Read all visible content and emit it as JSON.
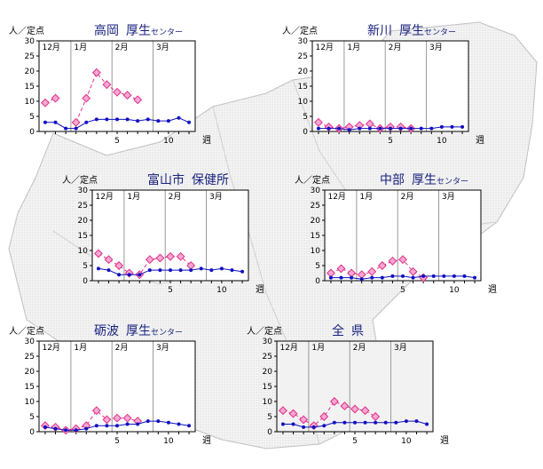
{
  "colors": {
    "prev_season": "#e0308a",
    "curr_season": "#1010c0",
    "title": "#1a237e",
    "plot_border": "#000000",
    "month_divider": "#999999",
    "map_fill": "#ececec",
    "map_stroke": "#c8c8c8"
  },
  "common": {
    "y_unit_label": "人／定点",
    "x_unit_label": "週",
    "month_labels": [
      "12月",
      "1月",
      "2月",
      "3月"
    ],
    "y_ticks": [
      "0",
      "5",
      "10",
      "15",
      "20",
      "25",
      "30"
    ],
    "x_ticks": [
      "5",
      "10"
    ]
  },
  "chart_data": [
    {
      "type": "line",
      "title": "高岡",
      "title_suffix_large": "厚生",
      "title_suffix_small": "センター",
      "ylim": [
        0,
        30
      ],
      "x_range": [
        -2,
        12
      ],
      "series": [
        {
          "x": [
            -2,
            -1,
            0,
            1,
            2,
            3,
            4,
            5,
            6,
            7
          ],
          "values": [
            9.5,
            11,
            null,
            3,
            11,
            19.5,
            15.5,
            13,
            12,
            10.5
          ]
        },
        {
          "x": [
            -2,
            -1,
            0,
            1,
            2,
            3,
            4,
            5,
            6,
            7,
            8,
            9,
            10,
            11,
            12
          ],
          "values": [
            3,
            3,
            1,
            1,
            3,
            4,
            4,
            4,
            4,
            3.5,
            4,
            3.5,
            3.5,
            4.5,
            3
          ]
        }
      ]
    },
    {
      "type": "line",
      "title": "新川",
      "title_suffix_large": "厚生",
      "title_suffix_small": "センター",
      "ylim": [
        0,
        30
      ],
      "x_range": [
        -2,
        12
      ],
      "series": [
        {
          "x": [
            -2,
            -1,
            0,
            1,
            2,
            3,
            4,
            5,
            6,
            7
          ],
          "values": [
            3,
            1.5,
            1,
            1.5,
            2,
            2.5,
            1,
            1.5,
            1.5,
            1
          ]
        },
        {
          "x": [
            -2,
            -1,
            0,
            1,
            2,
            3,
            4,
            5,
            6,
            7,
            8,
            9,
            10,
            11,
            12
          ],
          "values": [
            1,
            1,
            1,
            0.5,
            1,
            1,
            1,
            1,
            1,
            1,
            1,
            1,
            1.5,
            1.5,
            1.5
          ]
        }
      ]
    },
    {
      "type": "line",
      "title": "富山市",
      "title_suffix_large": "保健所",
      "title_suffix_small": "",
      "ylim": [
        0,
        30
      ],
      "x_range": [
        -2,
        12
      ],
      "series": [
        {
          "x": [
            -2,
            -1,
            0,
            1,
            2,
            3,
            4,
            5,
            6,
            7
          ],
          "values": [
            9,
            7,
            5,
            2.5,
            2,
            7,
            7.5,
            8,
            8,
            5
          ]
        },
        {
          "x": [
            -2,
            -1,
            0,
            1,
            2,
            3,
            4,
            5,
            6,
            7,
            8,
            9,
            10,
            11,
            12
          ],
          "values": [
            4,
            3.5,
            2,
            2,
            2,
            3.5,
            3.5,
            3.5,
            3.5,
            3.5,
            4,
            3.5,
            4,
            3.5,
            3
          ]
        }
      ]
    },
    {
      "type": "line",
      "title": "中部",
      "title_suffix_large": "厚生",
      "title_suffix_small": "センター",
      "ylim": [
        0,
        30
      ],
      "x_range": [
        -2,
        12
      ],
      "series": [
        {
          "x": [
            -2,
            -1,
            0,
            1,
            2,
            3,
            4,
            5,
            6,
            7
          ],
          "values": [
            2.5,
            4,
            2.5,
            2,
            3,
            5,
            6.5,
            7,
            3,
            1
          ]
        },
        {
          "x": [
            -2,
            -1,
            0,
            1,
            2,
            3,
            4,
            5,
            6,
            7,
            8,
            9,
            10,
            11,
            12
          ],
          "values": [
            1,
            1,
            1,
            0.5,
            1,
            1,
            1.5,
            1.5,
            1,
            1.5,
            1.5,
            1.5,
            1.5,
            1.5,
            1
          ]
        }
      ]
    },
    {
      "type": "line",
      "title": "砺波",
      "title_suffix_large": "厚生",
      "title_suffix_small": "センター",
      "ylim": [
        0,
        30
      ],
      "x_range": [
        -2,
        12
      ],
      "series": [
        {
          "x": [
            -2,
            -1,
            0,
            1,
            2,
            3,
            4,
            5,
            6,
            7
          ],
          "values": [
            2,
            1.5,
            0.5,
            1,
            2,
            7,
            4,
            4.5,
            4.5,
            3.5
          ]
        },
        {
          "x": [
            -2,
            -1,
            0,
            1,
            2,
            3,
            4,
            5,
            6,
            7,
            8,
            9,
            10,
            11,
            12
          ],
          "values": [
            1.5,
            1,
            0.5,
            0.5,
            1,
            2,
            2,
            2,
            2.5,
            2.5,
            3.5,
            3.5,
            3,
            2.5,
            2
          ]
        }
      ]
    },
    {
      "type": "line",
      "title": "全",
      "title_suffix_large": "県",
      "title_suffix_small": "",
      "ylim": [
        0,
        30
      ],
      "x_range": [
        -2,
        12
      ],
      "series": [
        {
          "x": [
            -2,
            -1,
            0,
            1,
            2,
            3,
            4,
            5,
            6,
            7
          ],
          "values": [
            7,
            6,
            4,
            2,
            5,
            10,
            8.5,
            7.5,
            7,
            5
          ]
        },
        {
          "x": [
            -2,
            -1,
            0,
            1,
            2,
            3,
            4,
            5,
            6,
            7,
            8,
            9,
            10,
            11,
            12
          ],
          "values": [
            2.5,
            2.5,
            1.5,
            1.5,
            2,
            3,
            3,
            3,
            3,
            3,
            3,
            3,
            3.5,
            3.5,
            2.5
          ]
        }
      ]
    }
  ]
}
